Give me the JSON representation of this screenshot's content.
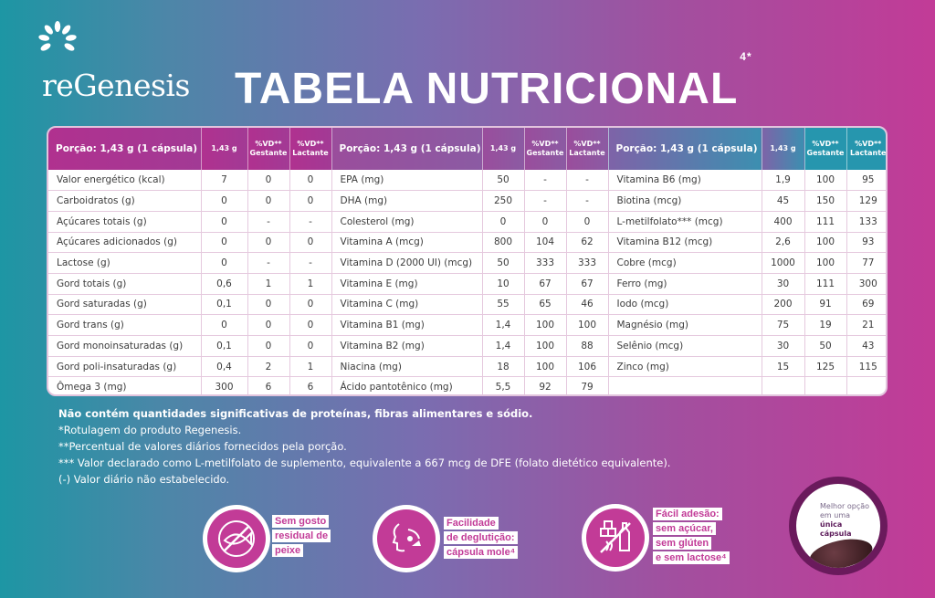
{
  "brand": {
    "name": "reGenesis"
  },
  "title": {
    "text": "TABELA NUTRICIONAL",
    "sup": "4*"
  },
  "table": {
    "headers": [
      {
        "porcao": "Porção: 1,43 g (1 cápsula)",
        "col1": "1,43 g",
        "col2": "%VD** Gestante",
        "col3": "%VD** Lactante"
      },
      {
        "porcao": "Porção: 1,43 g (1 cápsula)",
        "col1": "1,43 g",
        "col2": "%VD** Gestante",
        "col3": "%VD** Lactante"
      },
      {
        "porcao": "Porção: 1,43 g (1 cápsula)",
        "col1": "1,43 g",
        "col2": "%VD** Gestante",
        "col3": "%VD** Lactante"
      }
    ],
    "rows": [
      [
        "Valor energético (kcal)",
        "7",
        "0",
        "0",
        "EPA (mg)",
        "50",
        "-",
        "-",
        "Vitamina B6 (mg)",
        "1,9",
        "100",
        "95"
      ],
      [
        "Carboidratos (g)",
        "0",
        "0",
        "0",
        "DHA (mg)",
        "250",
        "-",
        "-",
        "Biotina (mcg)",
        "45",
        "150",
        "129"
      ],
      [
        "Açúcares totais (g)",
        "0",
        "-",
        "-",
        "Colesterol (mg)",
        "0",
        "0",
        "0",
        "L-metilfolato*** (mcg)",
        "400",
        "111",
        "133"
      ],
      [
        "Açúcares adicionados (g)",
        "0",
        "0",
        "0",
        "Vitamina A (mcg)",
        "800",
        "104",
        "62",
        "Vitamina B12 (mcg)",
        "2,6",
        "100",
        "93"
      ],
      [
        "Lactose (g)",
        "0",
        "-",
        "-",
        "Vitamina D (2000 UI) (mcg)",
        "50",
        "333",
        "333",
        "Cobre (mcg)",
        "1000",
        "100",
        "77"
      ],
      [
        "Gord totais (g)",
        "0,6",
        "1",
        "1",
        "Vitamina E (mg)",
        "10",
        "67",
        "67",
        "Ferro (mg)",
        "30",
        "111",
        "300"
      ],
      [
        "Gord saturadas (g)",
        "0,1",
        "0",
        "0",
        "Vitamina C (mg)",
        "55",
        "65",
        "46",
        "Iodo (mcg)",
        "200",
        "91",
        "69"
      ],
      [
        "Gord trans (g)",
        "0",
        "0",
        "0",
        "Vitamina B1 (mg)",
        "1,4",
        "100",
        "100",
        "Magnésio (mg)",
        "75",
        "19",
        "21"
      ],
      [
        "Gord monoinsaturadas (g)",
        "0,1",
        "0",
        "0",
        "Vitamina B2 (mg)",
        "1,4",
        "100",
        "88",
        "Selênio (mcg)",
        "30",
        "50",
        "43"
      ],
      [
        "Gord poli-insaturadas (g)",
        "0,4",
        "2",
        "1",
        "Niacina (mg)",
        "18",
        "100",
        "106",
        "Zinco (mg)",
        "15",
        "125",
        "115"
      ],
      [
        "Ômega 3 (mg)",
        "300",
        "6",
        "6",
        "Ácido pantotênico (mg)",
        "5,5",
        "92",
        "79",
        "",
        "",
        "",
        ""
      ]
    ]
  },
  "notes": {
    "bold": "Não contém quantidades significativas de proteínas, fibras alimentares e sódio.",
    "lines": [
      "*Rotulagem do produto Regenesis.",
      "**Percentual de valores diários fornecidos pela porção.",
      "*** Valor declarado como L-metilfolato de suplemento, equivalente a 667 mcg de DFE (folato dietético equivalente).",
      "(-) Valor diário não estabelecido."
    ]
  },
  "badges": [
    {
      "icon": "fish-crossed-icon",
      "lines": [
        "Sem gosto",
        "residual de",
        "peixe"
      ]
    },
    {
      "icon": "swallow-icon",
      "lines": [
        "Facilidade",
        "de deglutição:",
        "cápsula mole⁴"
      ]
    },
    {
      "icon": "sugar-gluten-lactose-free-icon",
      "lines": [
        "Fácil adesão:",
        "sem açúcar,",
        "sem glúten",
        "e sem lactose⁴"
      ]
    }
  ],
  "capsule_badge": {
    "text_pre": "Melhor opção em uma",
    "text_bold1": "única",
    "text_bold2": "cápsula"
  },
  "colors": {
    "magenta": "#c23b97",
    "teal": "#1d96a4",
    "purple": "#7a6db0"
  }
}
